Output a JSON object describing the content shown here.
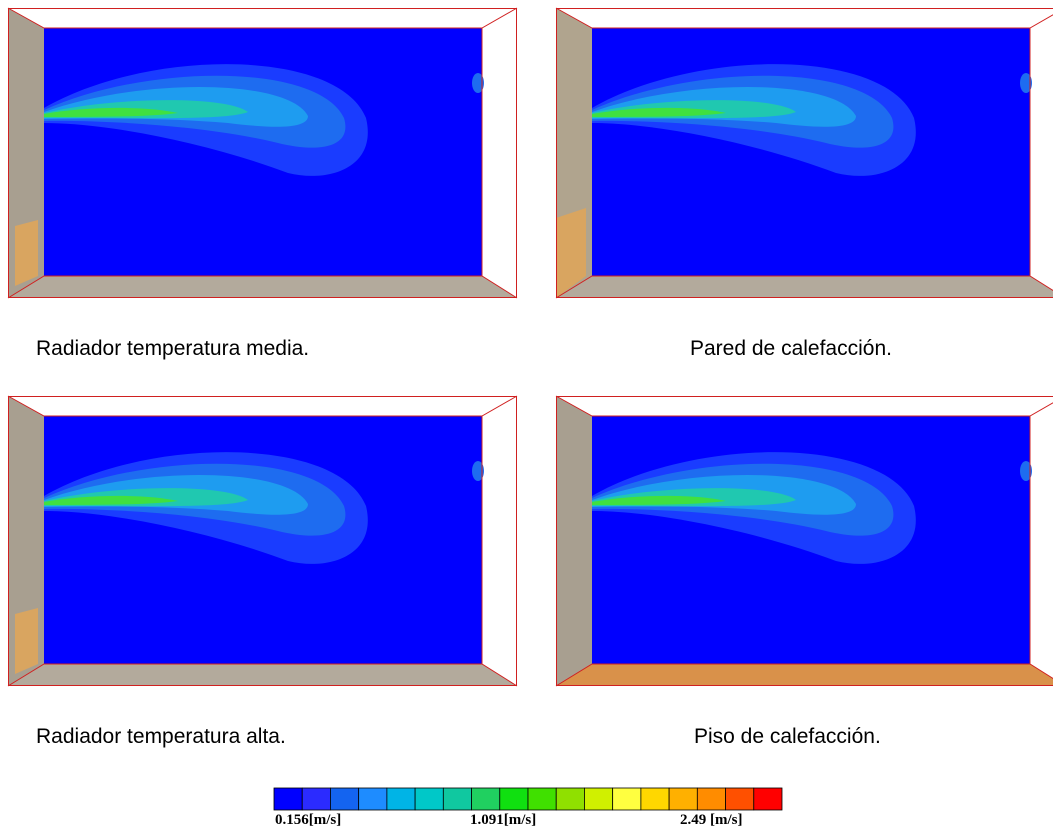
{
  "panels": [
    {
      "caption": "Radiador temperatura media."
    },
    {
      "caption": "Pared de calefacción."
    },
    {
      "caption": "Radiador temperatura alta."
    },
    {
      "caption": "Piso de calefacción."
    }
  ],
  "legend": {
    "colors": [
      "#0000ff",
      "#2b2bff",
      "#1464f0",
      "#1e8cff",
      "#00b4e6",
      "#00c8c8",
      "#10c8a0",
      "#20d060",
      "#10e010",
      "#40e000",
      "#90e000",
      "#d0f000",
      "#ffff40",
      "#ffd700",
      "#ffb000",
      "#ff8c00",
      "#ff5000",
      "#ff0000"
    ],
    "labels": [
      "0.156[m/s]",
      "1.091[m/s]",
      "2.49 [m/s]"
    ]
  }
}
